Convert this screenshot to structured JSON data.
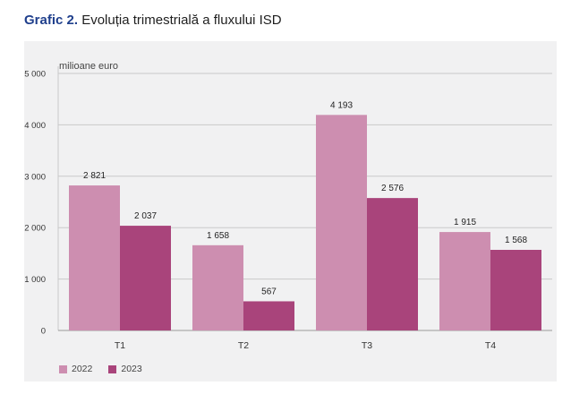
{
  "title": {
    "lead": "Grafic 2.",
    "text": "Evoluția trimestrială a fluxului ISD"
  },
  "colors": {
    "s2022": "#cd8eb0",
    "s2023": "#a9447b",
    "grid": "#c9c9c9",
    "panel": "#f1f1f2"
  },
  "chart_data": {
    "type": "bar",
    "title": "Evoluția trimestrială a fluxului ISD",
    "unit_label": "milioane euro",
    "categories": [
      "T1",
      "T2",
      "T3",
      "T4"
    ],
    "series": [
      {
        "name": "2022",
        "values": [
          2821,
          1658,
          4193,
          1915
        ],
        "labels": [
          "2 821",
          "1 658",
          "4 193",
          "1 915"
        ]
      },
      {
        "name": "2023",
        "values": [
          2037,
          567,
          2576,
          1568
        ],
        "labels": [
          "2 037",
          "567",
          "2 576",
          "1 568"
        ]
      }
    ],
    "ylim": [
      0,
      5000
    ],
    "yticks": [
      0,
      1000,
      2000,
      3000,
      4000,
      5000
    ],
    "ytick_labels": [
      "0",
      "1 000",
      "2 000",
      "3 000",
      "4 000",
      "5 000"
    ],
    "grid": true,
    "legend": "bottom-left"
  }
}
